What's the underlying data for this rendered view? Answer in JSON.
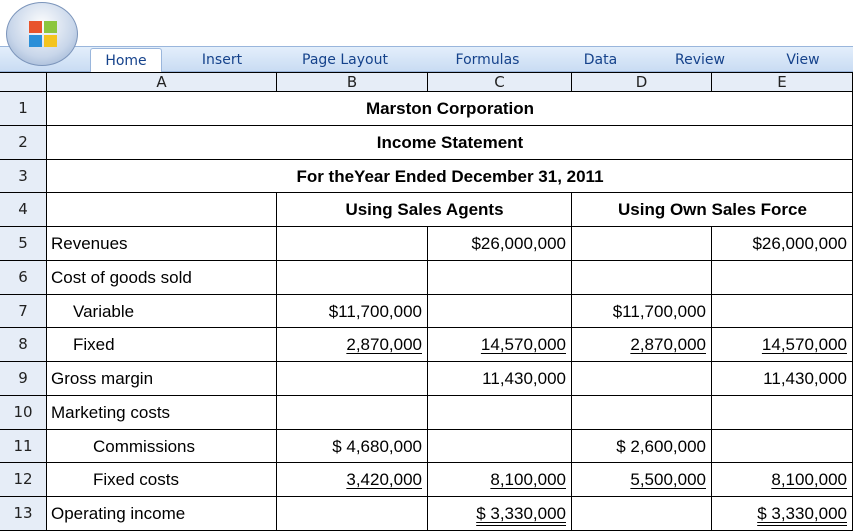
{
  "ribbon": {
    "tabs": [
      "Home",
      "Insert",
      "Page Layout",
      "Formulas",
      "Data",
      "Review",
      "View"
    ]
  },
  "sheet": {
    "columns": [
      "A",
      "B",
      "C",
      "D",
      "E"
    ],
    "rows": [
      {
        "number": "1",
        "cells": {
          "A:E": "Marston Corporation"
        }
      },
      {
        "number": "2",
        "cells": {
          "A:E": "Income Statement"
        }
      },
      {
        "number": "3",
        "cells": {
          "A:E": "For theYear Ended December 31, 2011"
        }
      },
      {
        "number": "4",
        "cells": {
          "B:C": "Using Sales Agents",
          "D:E": "Using Own Sales Force"
        }
      },
      {
        "number": "5",
        "cells": {
          "A": "Revenues",
          "C": "$26,000,000",
          "E": "$26,000,000"
        }
      },
      {
        "number": "6",
        "cells": {
          "A": "Cost of goods sold"
        }
      },
      {
        "number": "7",
        "cells": {
          "A": "Variable",
          "B": "$11,700,000",
          "D": "$11,700,000"
        }
      },
      {
        "number": "8",
        "cells": {
          "A": "Fixed",
          "B": "2,870,000",
          "C": "14,570,000",
          "D": "2,870,000",
          "E": "14,570,000"
        }
      },
      {
        "number": "9",
        "cells": {
          "A": "Gross margin",
          "C": "11,430,000",
          "E": "11,430,000"
        }
      },
      {
        "number": "10",
        "cells": {
          "A": "Marketing costs"
        }
      },
      {
        "number": "11",
        "cells": {
          "A": "Commissions",
          "B": "$ 4,680,000",
          "D": "$ 2,600,000"
        }
      },
      {
        "number": "12",
        "cells": {
          "A": "Fixed costs",
          "B": "3,420,000",
          "C": "8,100,000",
          "D": "5,500,000",
          "E": "8,100,000"
        }
      },
      {
        "number": "13",
        "cells": {
          "A": "Operating income",
          "C": "$ 3,330,000",
          "E": "$ 3,330,000"
        }
      }
    ]
  }
}
